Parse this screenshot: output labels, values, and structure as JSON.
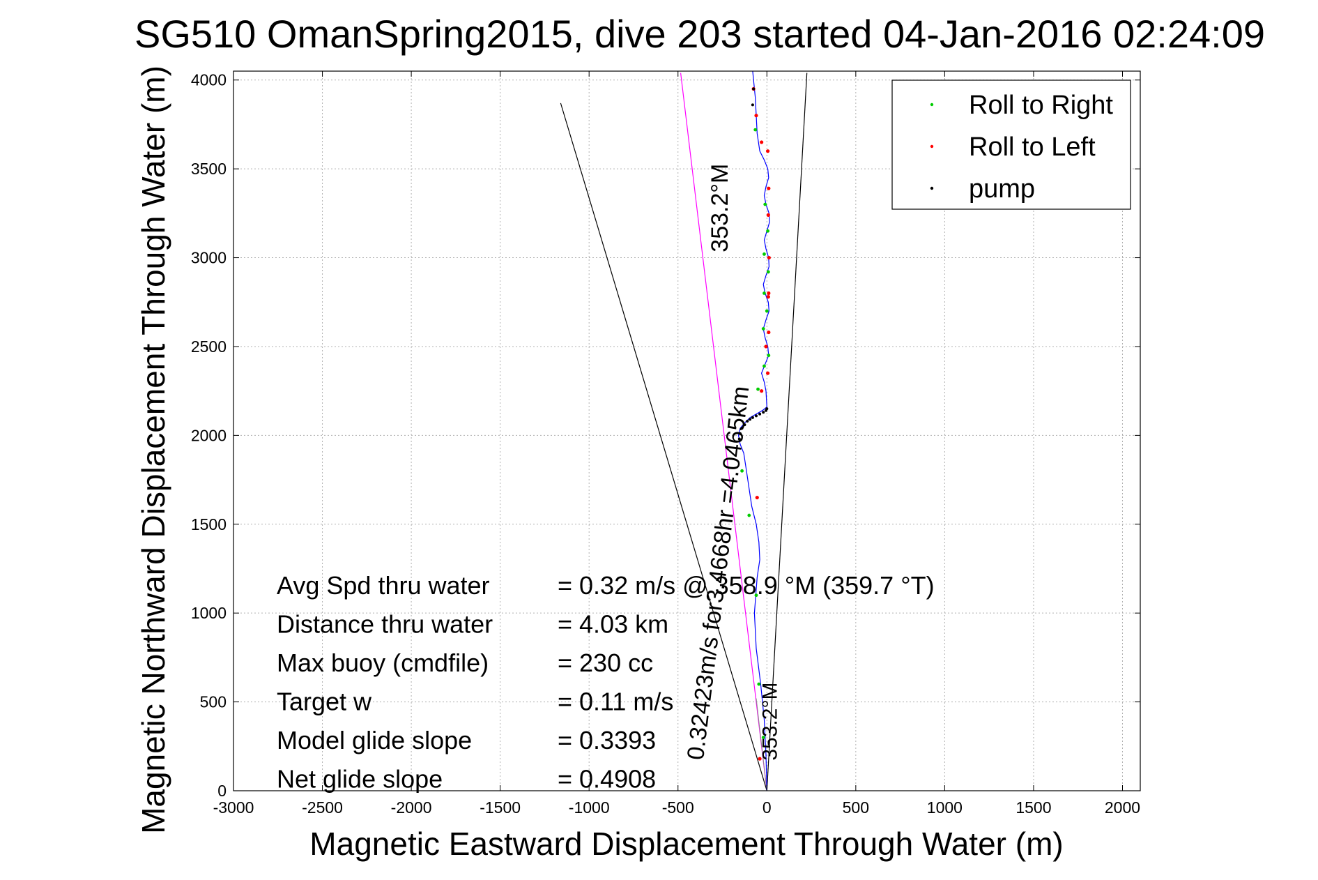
{
  "chart_data": {
    "type": "line",
    "title": "SG510 OmanSpring2015, dive 203 started 04-Jan-2016 02:24:09",
    "xlabel": "Magnetic Eastward Displacement Through Water (m)",
    "ylabel": "Magnetic Northward Displacement Through Water (m)",
    "xlim": [
      -3000,
      2100
    ],
    "ylim": [
      0,
      4050
    ],
    "xticks": [
      -3000,
      -2500,
      -2000,
      -1500,
      -1000,
      -500,
      0,
      500,
      1000,
      1500,
      2000
    ],
    "yticks": [
      0,
      500,
      1000,
      1500,
      2000,
      2500,
      3000,
      3500,
      4000
    ],
    "grid": true,
    "legend_position": "top-right",
    "legend": [
      {
        "name": "Roll to Right",
        "color": "#00cc00"
      },
      {
        "name": "Roll to Left",
        "color": "#ff0000"
      },
      {
        "name": "pump",
        "color": "#000000"
      }
    ],
    "track": {
      "name": "glider track",
      "color": "#0000ff",
      "x": [
        0,
        -5,
        -15,
        -35,
        -60,
        -70,
        -55,
        -40,
        -45,
        -60,
        -85,
        -100,
        -115,
        -130,
        -150,
        -160,
        -150,
        -125,
        -95,
        -60,
        -25,
        0,
        -5,
        -15,
        -30,
        -10,
        10,
        5,
        -10,
        -20,
        -5,
        12,
        8,
        -10,
        -20,
        -5,
        12,
        10,
        -5,
        -15,
        0,
        15,
        12,
        -5,
        -15,
        -5,
        10,
        5,
        -15,
        -40,
        -55,
        -60,
        -65,
        -80
      ],
      "y": [
        0,
        200,
        400,
        600,
        800,
        1000,
        1200,
        1300,
        1400,
        1500,
        1600,
        1700,
        1800,
        1900,
        1950,
        2000,
        2040,
        2070,
        2100,
        2120,
        2140,
        2160,
        2250,
        2300,
        2350,
        2400,
        2450,
        2500,
        2550,
        2600,
        2650,
        2700,
        2750,
        2800,
        2850,
        2900,
        2950,
        3000,
        3050,
        3100,
        3150,
        3200,
        3250,
        3300,
        3350,
        3400,
        3450,
        3500,
        3550,
        3600,
        3700,
        3800,
        3900,
        4050
      ]
    },
    "markers": {
      "roll_right": {
        "x": [
          -20,
          -45,
          -60,
          -100,
          -140,
          -50,
          -15,
          10,
          -20,
          0,
          -15,
          8,
          -15,
          5,
          -10,
          -65
        ],
        "y": [
          300,
          600,
          1100,
          1550,
          1800,
          2260,
          2390,
          2450,
          2600,
          2700,
          2800,
          2920,
          3020,
          3150,
          3300,
          3720
        ]
      },
      "roll_left": {
        "x": [
          -40,
          -55,
          -30,
          5,
          -5,
          10,
          8,
          10,
          12,
          8,
          10,
          5,
          -30,
          -60,
          -75
        ],
        "y": [
          180,
          1650,
          2250,
          2350,
          2500,
          2580,
          2780,
          2800,
          3000,
          3240,
          3390,
          3600,
          3650,
          3800,
          3950
        ]
      },
      "pump": {
        "x": [
          -155,
          -150,
          -140,
          -125,
          -110,
          -95,
          -80,
          -60,
          -40,
          -20,
          -5,
          0,
          -80,
          -75
        ],
        "y": [
          1980,
          2010,
          2040,
          2060,
          2080,
          2090,
          2100,
          2110,
          2120,
          2130,
          2140,
          2150,
          3860,
          3950
        ]
      }
    },
    "reference_lines": [
      {
        "name": "heading line",
        "color": "#ff00ff",
        "x": [
          0,
          -485
        ],
        "y": [
          0,
          4040
        ]
      },
      {
        "name": "bound line left",
        "color": "#000000",
        "x": [
          0,
          -1160
        ],
        "y": [
          0,
          3870
        ]
      },
      {
        "name": "bound line right",
        "color": "#000000",
        "x": [
          0,
          225
        ],
        "y": [
          0,
          4040
        ]
      },
      {
        "name": "short heading",
        "color": "#888888",
        "x": [
          0,
          -60
        ],
        "y": [
          0,
          520
        ]
      }
    ],
    "annotations": [
      {
        "text": "353.2°M",
        "x": -220,
        "y": 3280,
        "angle": -90
      },
      {
        "text": "0.32423m/s for3.4668hr =4.0465km",
        "x": -230,
        "y": 1220,
        "angle": -83
      },
      {
        "text": "353.2°M",
        "x": 55,
        "y": 390,
        "angle": -90
      }
    ],
    "stats": [
      {
        "label": "Avg Spd thru water",
        "value": "=  0.32 m/s @ 358.9 °M (359.7 °T)"
      },
      {
        "label": "Distance thru water",
        "value": "=  4.03 km"
      },
      {
        "label": "Max buoy (cmdfile)",
        "value": "= 230 cc"
      },
      {
        "label": "Target w",
        "value": "= 0.11 m/s"
      },
      {
        "label": "Model glide slope",
        "value": "= 0.3393"
      },
      {
        "label": "Net glide slope",
        "value": "= 0.4908"
      }
    ]
  }
}
